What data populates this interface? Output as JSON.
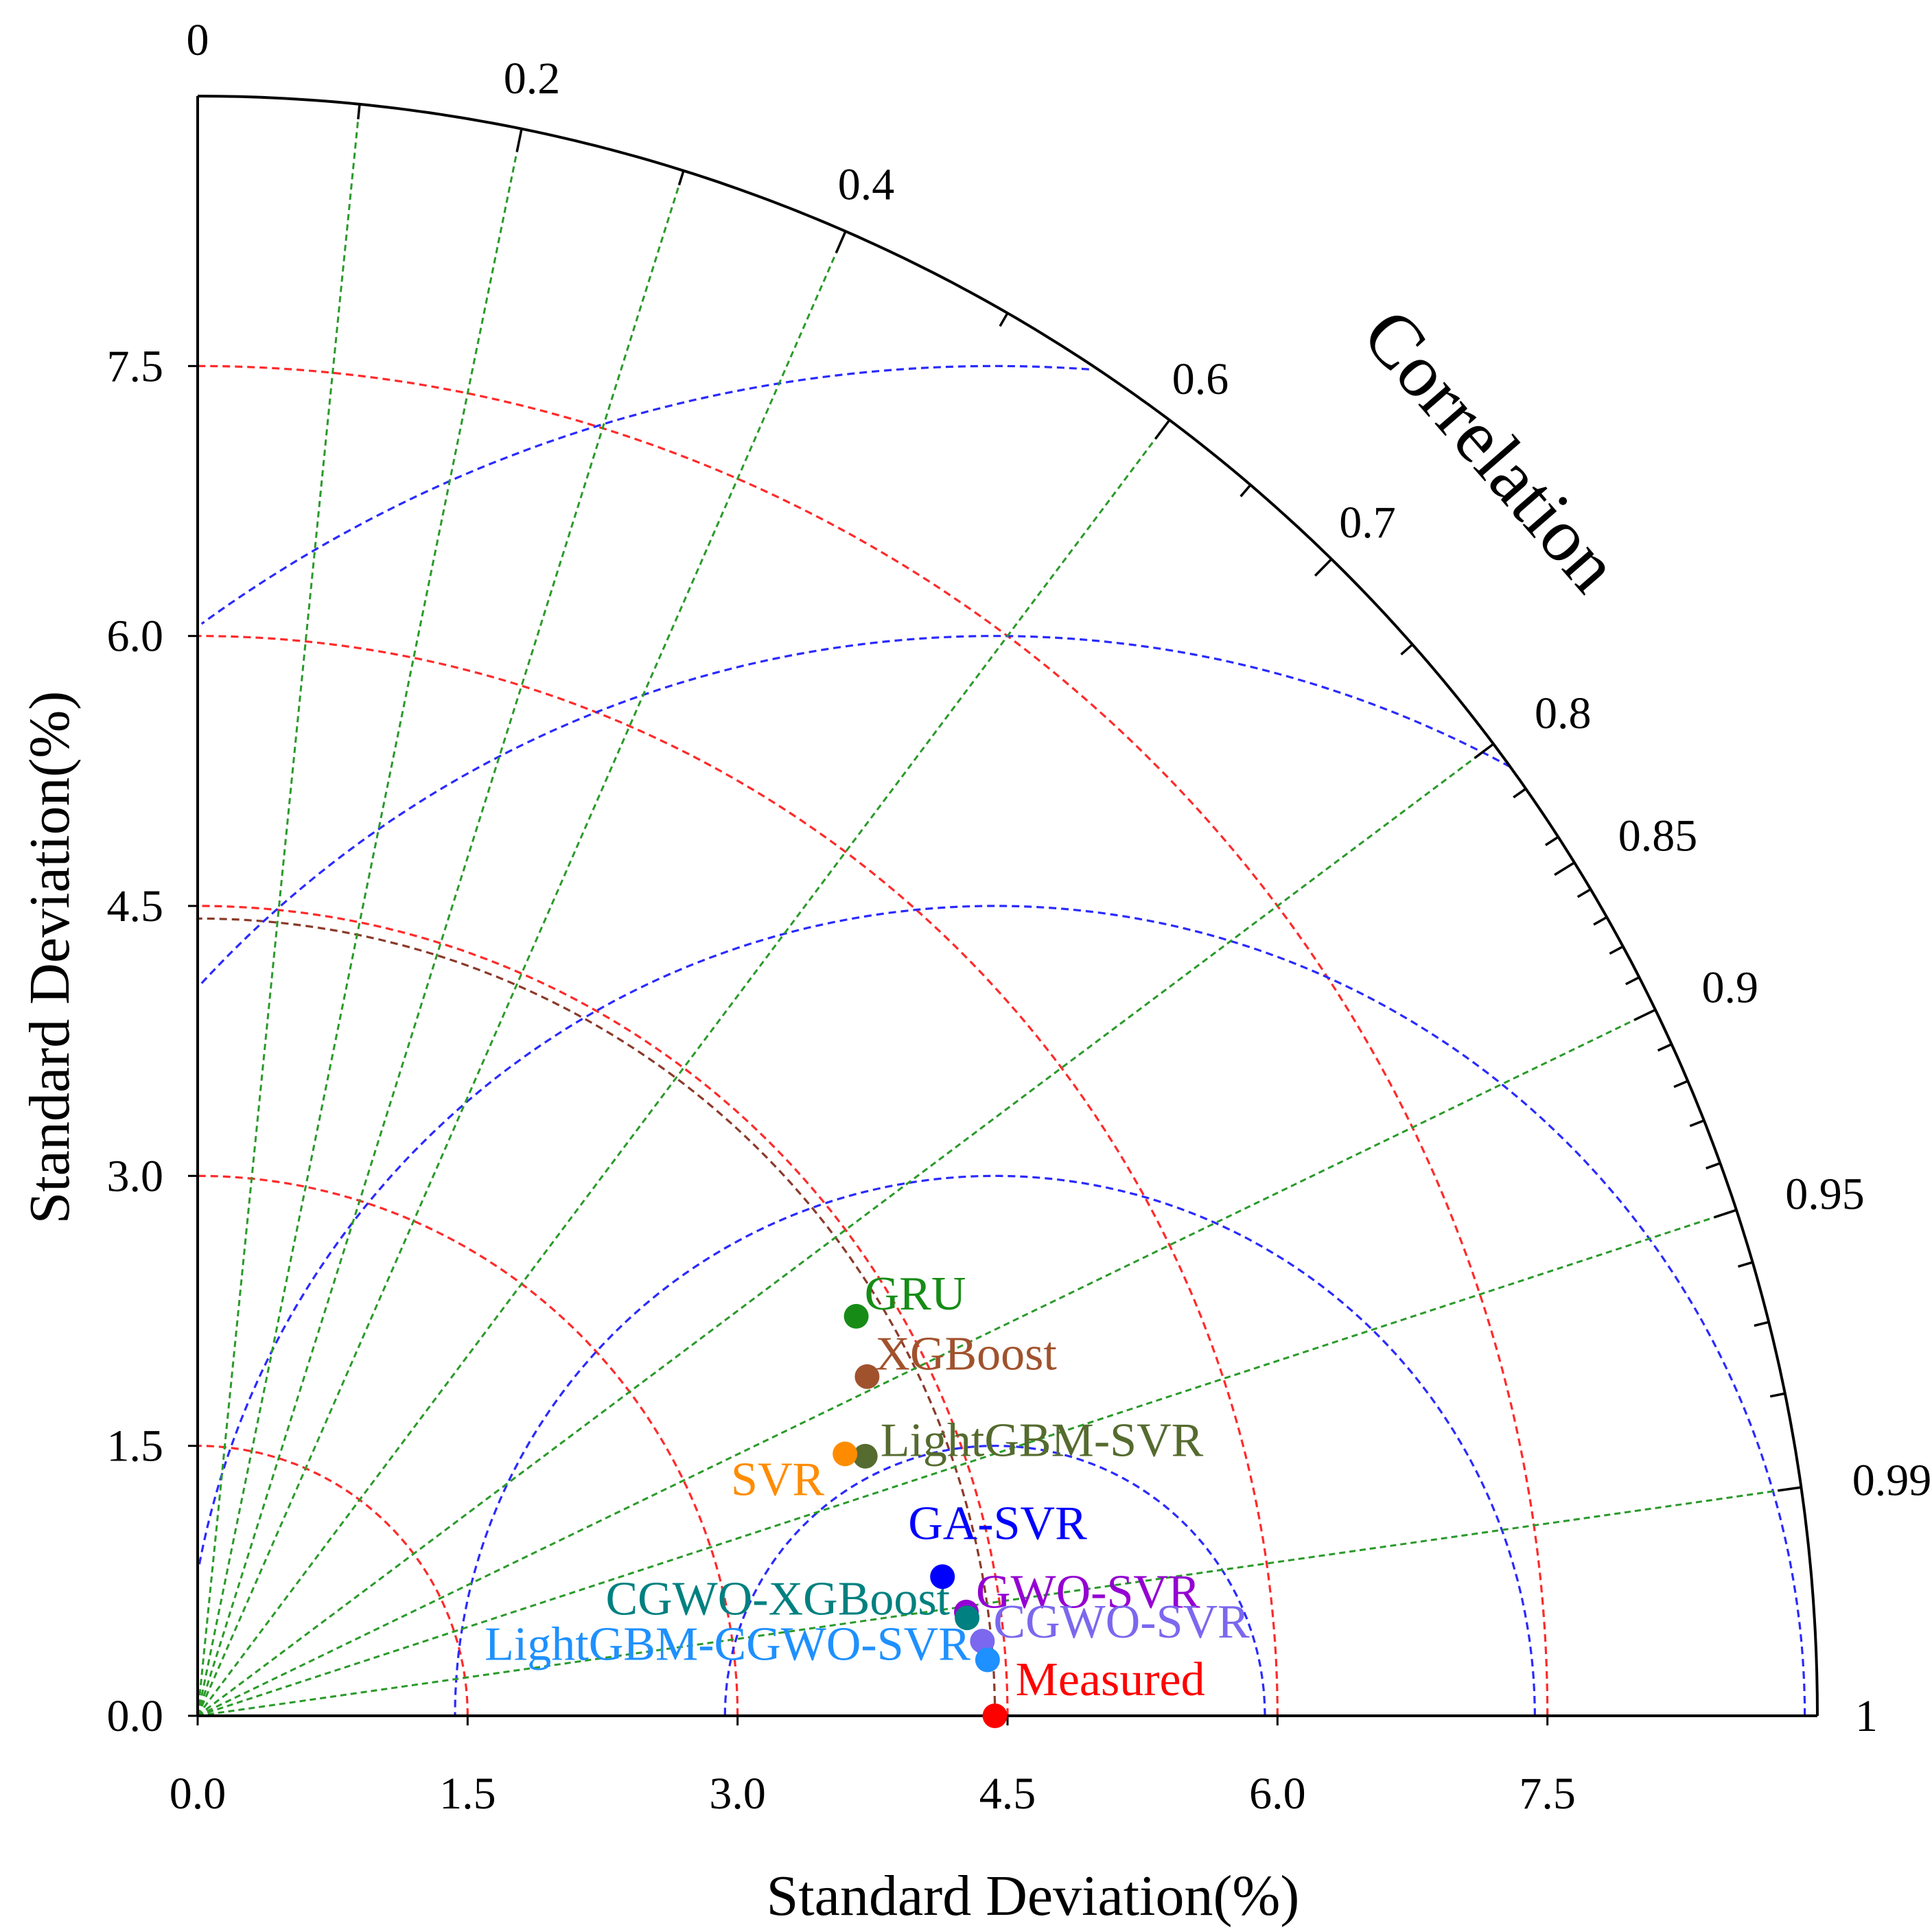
{
  "chart_data": {
    "type": "taylor",
    "xlabel": "Standard Deviation(%)",
    "ylabel": "Standard Deviation(%)",
    "correlation_label": "Correlation",
    "std_range": [
      0,
      9.0
    ],
    "std_ticks": [
      0.0,
      1.5,
      3.0,
      4.5,
      6.0,
      7.5
    ],
    "std_tick_labels": [
      "0.0",
      "1.5",
      "3.0",
      "4.5",
      "6.0",
      "7.5"
    ],
    "correlation_ticks": [
      {
        "value": 0,
        "label": "0"
      },
      {
        "value": 0.2,
        "label": "0.2"
      },
      {
        "value": 0.4,
        "label": "0.4"
      },
      {
        "value": 0.6,
        "label": "0.6"
      },
      {
        "value": 0.7,
        "label": "0.7"
      },
      {
        "value": 0.8,
        "label": "0.8"
      },
      {
        "value": 0.85,
        "label": "0.85"
      },
      {
        "value": 0.9,
        "label": "0.9"
      },
      {
        "value": 0.95,
        "label": "0.95"
      },
      {
        "value": 0.99,
        "label": "0.99"
      },
      {
        "value": 1,
        "label": "1"
      }
    ],
    "correlation_minor_ticks": [
      0.1,
      0.3,
      0.5,
      0.65,
      0.75,
      0.82,
      0.84,
      0.86,
      0.87,
      0.88,
      0.89,
      0.91,
      0.92,
      0.93,
      0.94,
      0.96,
      0.97,
      0.98
    ],
    "correlation_lines": [
      0.1,
      0.2,
      0.3,
      0.4,
      0.6,
      0.8,
      0.9,
      0.95,
      0.99
    ],
    "std_arcs": [
      1.5,
      3.0,
      4.5,
      6.0,
      7.5,
      4.43
    ],
    "rms_arcs": [
      1.5,
      3.0,
      4.5,
      6.0,
      7.5
    ],
    "reference_std": 4.43,
    "colors": {
      "axis": "#000000",
      "std_arc": "#ff2a2a",
      "ref_arc": "#8b3a2a",
      "rms_arc": "#2a2aff",
      "corr_line": "#2a9a2a"
    },
    "points": [
      {
        "name": "Measured",
        "std": 4.43,
        "corr": 1.0,
        "color": "#ff0000"
      },
      {
        "name": "GRU",
        "std": 4.28,
        "corr": 0.855,
        "color": "#168c16"
      },
      {
        "name": "XGBoost",
        "std": 4.17,
        "corr": 0.892,
        "color": "#a0522d"
      },
      {
        "name": "LightGBM-SVR",
        "std": 3.98,
        "corr": 0.932,
        "color": "#556b2f"
      },
      {
        "name": "SVR",
        "std": 3.88,
        "corr": 0.927,
        "color": "#ff8c00"
      },
      {
        "name": "GA-SVR",
        "std": 4.21,
        "corr": 0.983,
        "color": "#0000ff"
      },
      {
        "name": "GWO-SVR",
        "std": 4.31,
        "corr": 0.991,
        "color": "#9400d3"
      },
      {
        "name": "CGWO-XGBoost",
        "std": 4.31,
        "corr": 0.992,
        "color": "#008080"
      },
      {
        "name": "CGWO-SVR",
        "std": 4.38,
        "corr": 0.9955,
        "color": "#7b68ee"
      },
      {
        "name": "LightGBM-CGWO-SVR",
        "std": 4.4,
        "corr": 0.9975,
        "color": "#1e90ff"
      }
    ]
  }
}
